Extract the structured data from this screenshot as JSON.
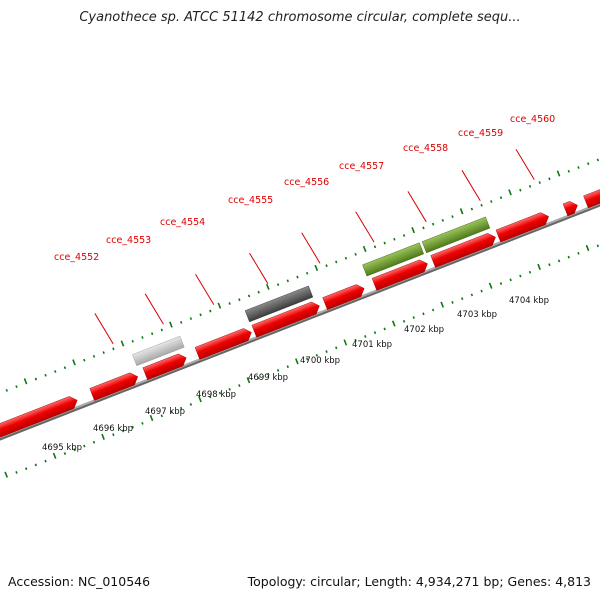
{
  "title": "Cyanothece sp. ATCC 51142 chromosome circular, complete sequ...",
  "footer": {
    "accession": "Accession: NC_010546",
    "summary": "Topology: circular; Length: 4,934,271 bp; Genes: 4,813"
  },
  "colors": {
    "gene_default": "#ee0000",
    "gene_light_gray": "#c4c4c4",
    "gene_dark_gray": "#5a5a5a",
    "gene_olive": "#6d9a2a",
    "tick_green": "#117711",
    "label_red": "#dd0000",
    "backbone": "#9a9a9a"
  },
  "gene_labels": [
    "cce_4552",
    "cce_4553",
    "cce_4554",
    "cce_4555",
    "cce_4556",
    "cce_4557",
    "cce_4558",
    "cce_4559",
    "cce_4560"
  ],
  "scale_labels": [
    "4695 kbp",
    "4696 kbp",
    "4697 kbp",
    "4698 kbp",
    "4699 kbp",
    "4700 kbp",
    "4701 kbp",
    "4702 kbp",
    "4703 kbp",
    "4704 kbp"
  ]
}
